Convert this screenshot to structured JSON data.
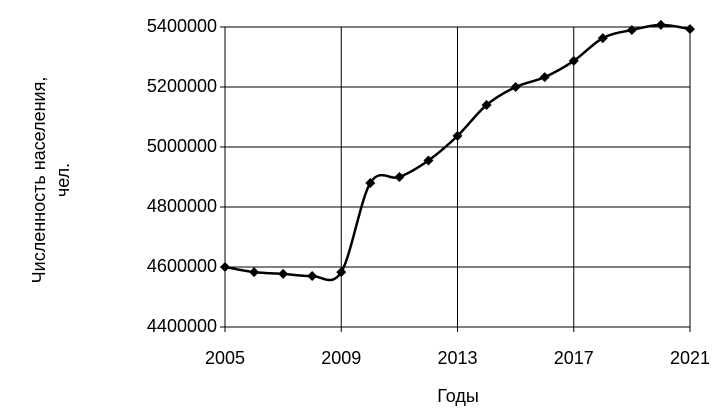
{
  "chart_data": {
    "type": "line",
    "xlabel": "Годы",
    "ylabel": [
      "Численность населения,",
      "чел."
    ],
    "x": [
      2005,
      2006,
      2007,
      2008,
      2009,
      2010,
      2011,
      2012,
      2013,
      2014,
      2015,
      2016,
      2017,
      2018,
      2019,
      2020,
      2021
    ],
    "series": [
      {
        "color": "#000000",
        "values": [
          4600000,
          4583000,
          4577000,
          4570000,
          4583000,
          4880000,
          4900000,
          4955000,
          5037000,
          5140000,
          5200000,
          5233000,
          5287000,
          5363000,
          5390000,
          5407000,
          5393000
        ]
      }
    ],
    "xlim": [
      2005,
      2021
    ],
    "xticks": [
      2005,
      2009,
      2013,
      2017,
      2021
    ],
    "ylim": [
      4400000,
      5400000
    ],
    "yticks": [
      4400000,
      4600000,
      4800000,
      5000000,
      5200000,
      5400000
    ],
    "grid": true
  }
}
